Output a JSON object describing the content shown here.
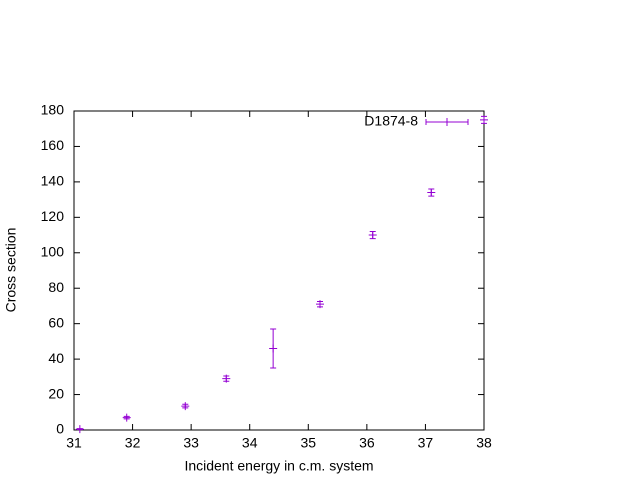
{
  "chart_data": {
    "type": "scatter",
    "x_label": "Incident energy in c.m. system",
    "y_label": "Cross section",
    "xlim": [
      31,
      38
    ],
    "xticks": [
      31,
      32,
      33,
      34,
      35,
      36,
      37,
      38
    ],
    "ylim": [
      0,
      180
    ],
    "yticks": [
      0,
      20,
      40,
      60,
      80,
      100,
      120,
      140,
      160,
      180
    ],
    "legend": "top right",
    "series": [
      {
        "name": "D1874-8",
        "color": "#9400d3",
        "x": [
          31.1,
          31.9,
          32.9,
          33.6,
          34.4,
          35.2,
          36.1,
          37.1,
          38.0
        ],
        "values": [
          0.5,
          7,
          13.5,
          29,
          46,
          71,
          110,
          134,
          175
        ],
        "yerr": [
          0.3,
          0.7,
          1,
          1.5,
          11,
          1.5,
          2,
          2,
          2
        ]
      }
    ]
  }
}
